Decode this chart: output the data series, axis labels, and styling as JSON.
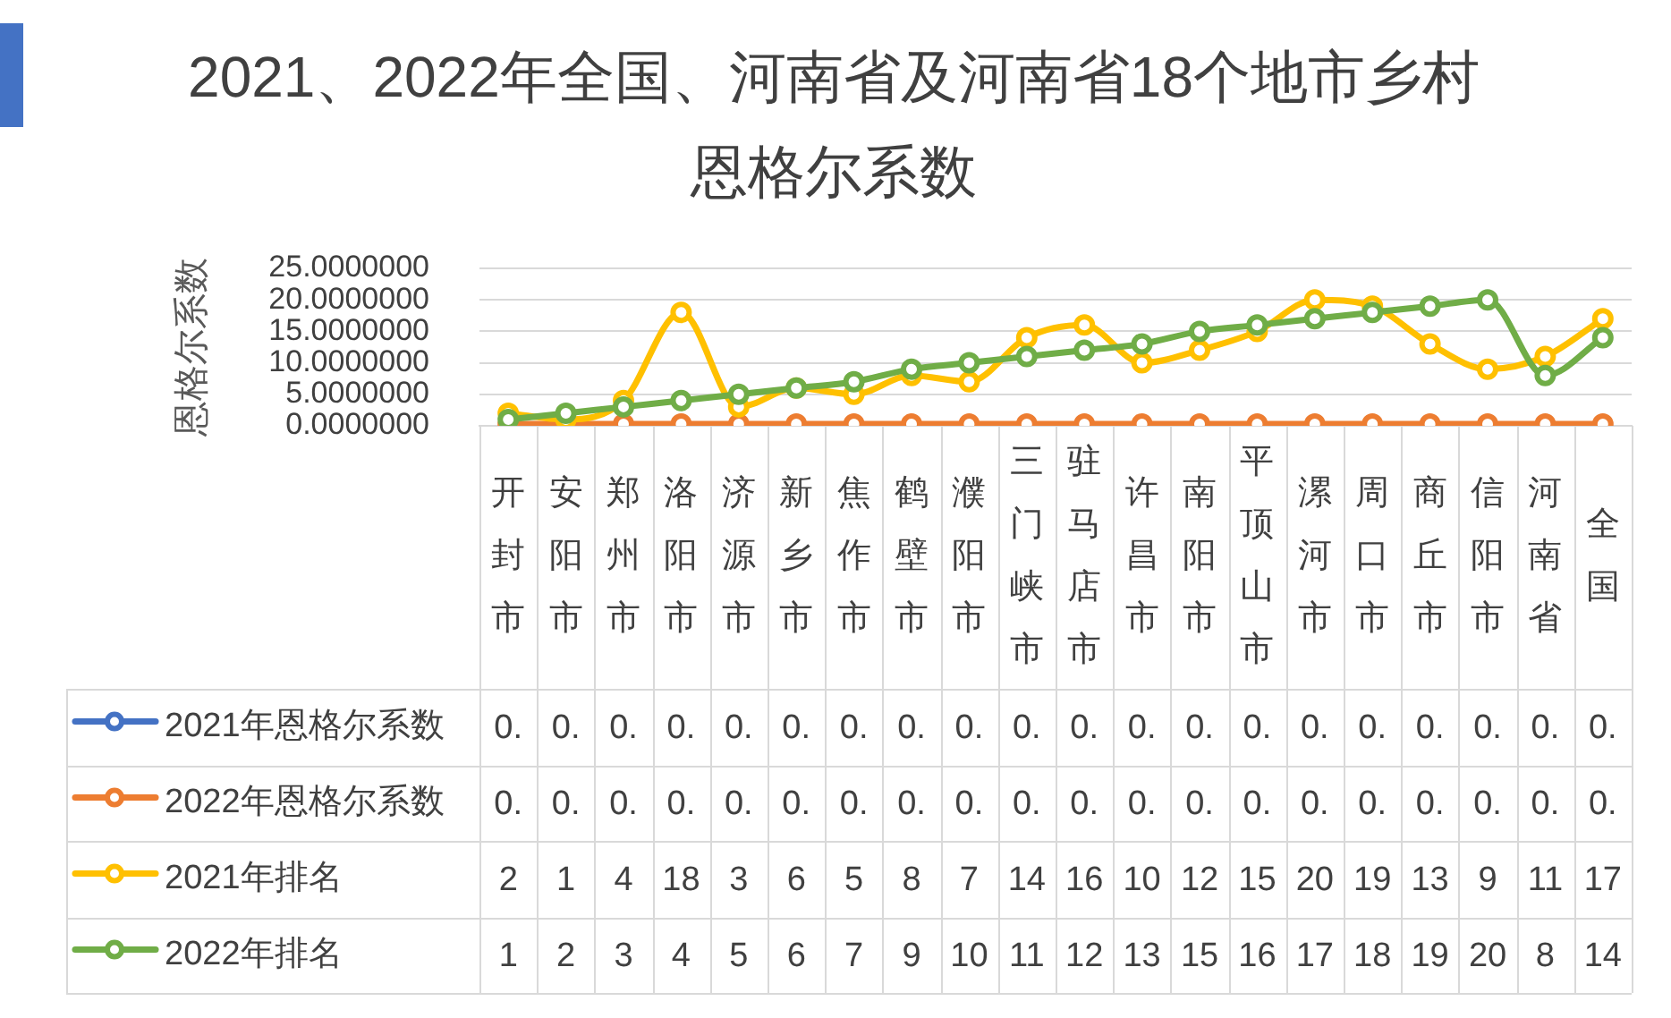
{
  "chart_data": {
    "type": "line",
    "title": "2021、2022年全国、河南省及河南省18个地市乡村恩格尔系数",
    "ylabel": "恩格尔系数",
    "categories": [
      "开封市",
      "安阳市",
      "郑州市",
      "洛阳市",
      "济源市",
      "新乡市",
      "焦作市",
      "鹤壁市",
      "濮阳市",
      "三门峡市",
      "驻马店市",
      "许昌市",
      "南阳市",
      "平顶山市",
      "漯河市",
      "周口市",
      "商丘市",
      "信阳市",
      "河南省",
      "全国"
    ],
    "series": [
      {
        "name": "2021年恩格尔系数",
        "color": "#4472c4",
        "values": [
          null,
          null,
          null,
          null,
          null,
          null,
          null,
          null,
          null,
          null,
          null,
          null,
          null,
          null,
          null,
          null,
          null,
          null,
          null,
          null
        ],
        "value_labels": [
          "0.",
          "0.",
          "0.",
          "0.",
          "0.",
          "0.",
          "0.",
          "0.",
          "0.",
          "0.",
          "0.",
          "0.",
          "0.",
          "0.",
          "0.",
          "0.",
          "0.",
          "0.",
          "0.",
          "0."
        ]
      },
      {
        "name": "2022年恩格尔系数",
        "color": "#ed7d31",
        "values": [
          0.3,
          0.3,
          0.3,
          0.3,
          0.3,
          0.3,
          0.3,
          0.3,
          0.3,
          0.3,
          0.3,
          0.3,
          0.3,
          0.3,
          0.3,
          0.3,
          0.3,
          0.3,
          0.3,
          0.3
        ],
        "value_labels": [
          "0.",
          "0.",
          "0.",
          "0.",
          "0.",
          "0.",
          "0.",
          "0.",
          "0.",
          "0.",
          "0.",
          "0.",
          "0.",
          "0.",
          "0.",
          "0.",
          "0.",
          "0.",
          "0.",
          "0."
        ]
      },
      {
        "name": "2021年排名",
        "color": "#ffc000",
        "values": [
          2,
          1,
          4,
          18,
          3,
          6,
          5,
          8,
          7,
          14,
          16,
          10,
          12,
          15,
          20,
          19,
          13,
          9,
          11,
          17
        ],
        "value_labels": [
          "2",
          "1",
          "4",
          "18",
          "3",
          "6",
          "5",
          "8",
          "7",
          "14",
          "16",
          "10",
          "12",
          "15",
          "20",
          "19",
          "13",
          "9",
          "11",
          "17"
        ]
      },
      {
        "name": "2022年排名",
        "color": "#70ad47",
        "values": [
          1,
          2,
          3,
          4,
          5,
          6,
          7,
          9,
          10,
          11,
          12,
          13,
          15,
          16,
          17,
          18,
          19,
          20,
          8,
          14
        ],
        "value_labels": [
          "1",
          "2",
          "3",
          "4",
          "5",
          "6",
          "7",
          "9",
          "10",
          "11",
          "12",
          "13",
          "15",
          "16",
          "17",
          "18",
          "19",
          "20",
          "8",
          "14"
        ]
      }
    ],
    "ylim": [
      0,
      25
    ],
    "yticks": [
      {
        "value": 0,
        "label": "0.0000000"
      },
      {
        "value": 5,
        "label": "5.0000000"
      },
      {
        "value": 10,
        "label": "10.0000000"
      },
      {
        "value": 15,
        "label": "15.0000000"
      },
      {
        "value": 20,
        "label": "20.0000000"
      },
      {
        "value": 25,
        "label": "25.0000000"
      }
    ],
    "grid": "y",
    "legend": "bottom",
    "marker": "circle",
    "line_style": "solid"
  }
}
